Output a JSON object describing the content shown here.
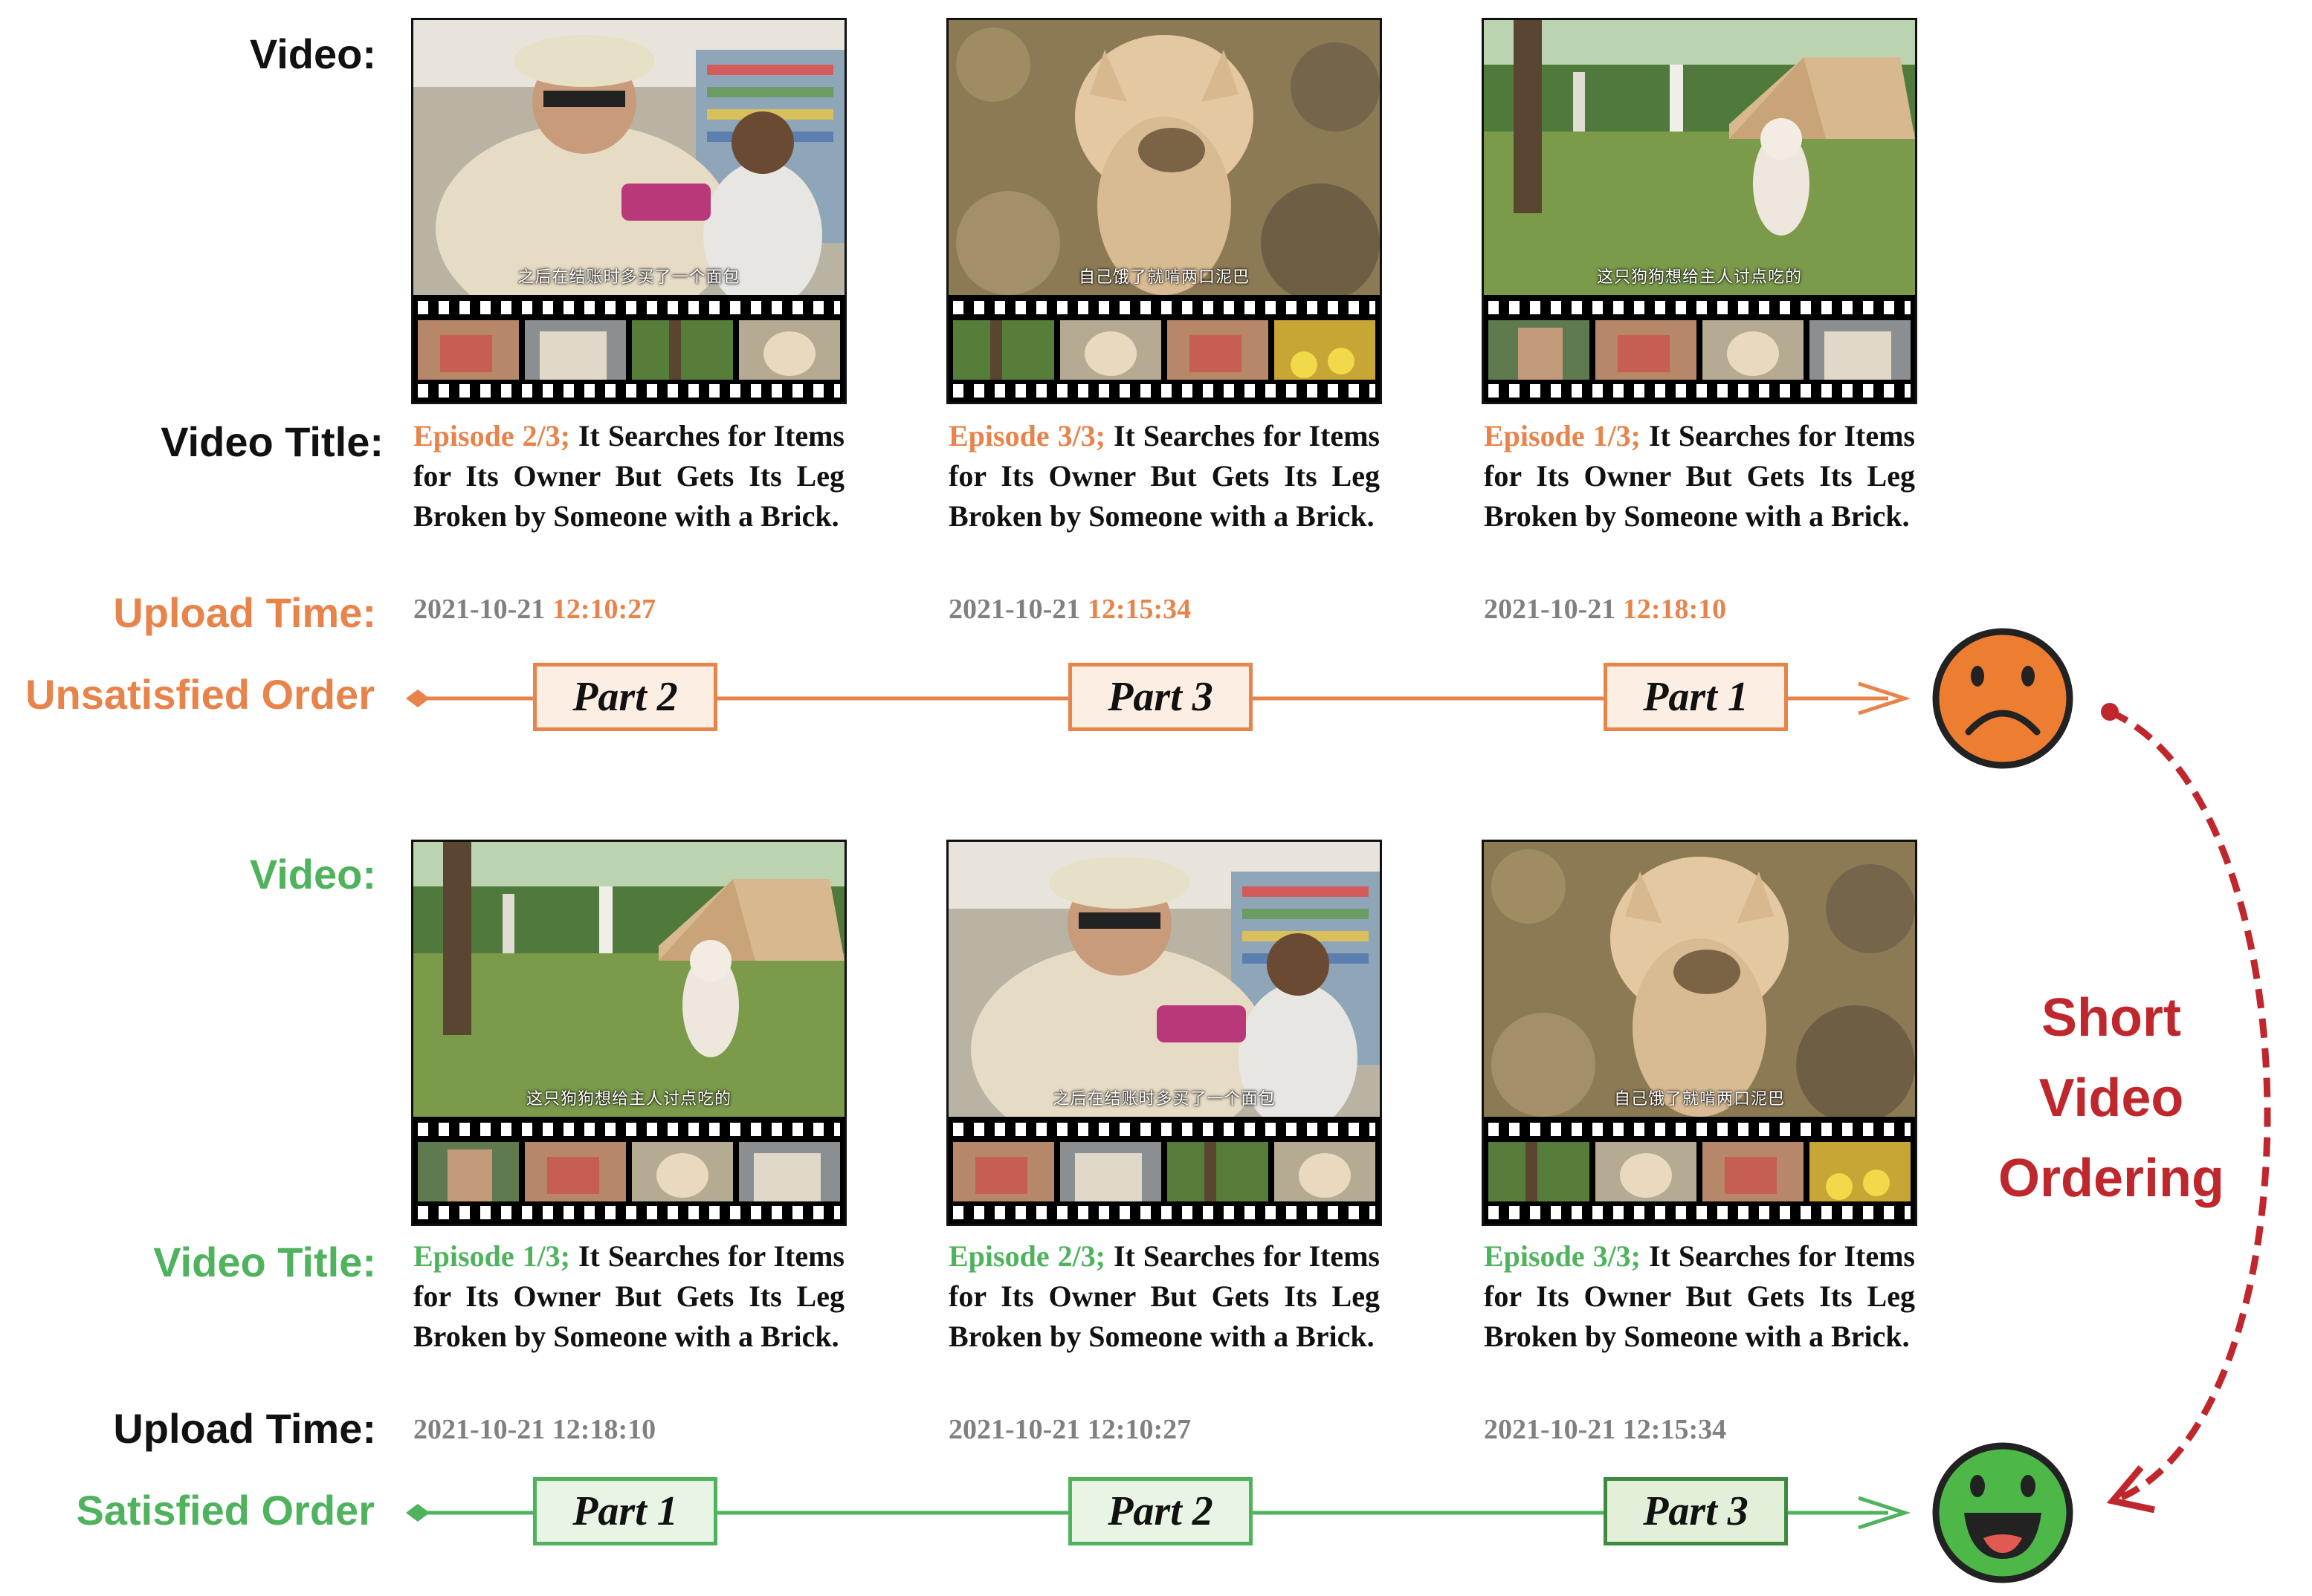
{
  "colors": {
    "orange": "#e8834a",
    "green": "#4fb35e",
    "dark_green": "#3f8a3f",
    "red": "#c0272d",
    "gray": "#808080"
  },
  "top": {
    "video_label": "Video:",
    "title_label": "Video Title:",
    "upload_label": "Upload Time:",
    "order_label": "Unsatisfied Order",
    "videos": [
      {
        "subtitle": "之后在结账时多买了一个面包",
        "episode": "Episode 2/3;",
        "title_rest": " It Searches for Items for Its Owner But Gets Its Leg Broken by Someone with a Brick.",
        "date": "2021-10-21 ",
        "clock": "12:10:27",
        "part": "Part 2"
      },
      {
        "subtitle": "自己饿了就啃两口泥巴",
        "episode": "Episode 3/3;",
        "title_rest": " It Searches for Items for Its Owner But Gets Its Leg Broken by Someone with a Brick.",
        "date": "2021-10-21 ",
        "clock": "12:15:34",
        "part": "Part 3"
      },
      {
        "subtitle": "这只狗狗想给主人讨点吃的",
        "episode": "Episode 1/3;",
        "title_rest": " It Searches for Items for Its Owner But Gets Its Leg Broken by Someone with a Brick.",
        "date": "2021-10-21 ",
        "clock": "12:18:10",
        "part": "Part 1"
      }
    ],
    "face_icon": "sad-face-icon"
  },
  "bottom": {
    "video_label": "Video:",
    "title_label": "Video Title:",
    "upload_label": "Upload Time:",
    "order_label": "Satisfied Order",
    "videos": [
      {
        "subtitle": "这只狗狗想给主人讨点吃的",
        "episode": "Episode 1/3;",
        "title_rest": " It Searches for Items for Its Owner But Gets Its Leg Broken by Someone with a Brick.",
        "time": "2021-10-21 12:18:10",
        "part": "Part 1"
      },
      {
        "subtitle": "之后在结账时多买了一个面包",
        "episode": "Episode 2/3;",
        "title_rest": " It Searches for Items for Its Owner But Gets Its Leg Broken by Someone with a Brick.",
        "time": "2021-10-21 12:10:27",
        "part": "Part 2"
      },
      {
        "subtitle": "自己饿了就啃两口泥巴",
        "episode": "Episode 3/3;",
        "title_rest": " It Searches for Items for Its Owner But Gets Its Leg Broken by Someone with a Brick.",
        "time": "2021-10-21 12:15:34",
        "part": "Part 3"
      }
    ],
    "face_icon": "happy-face-icon"
  },
  "side_label": {
    "line1": "Short",
    "line2": "Video",
    "line3": "Ordering"
  }
}
